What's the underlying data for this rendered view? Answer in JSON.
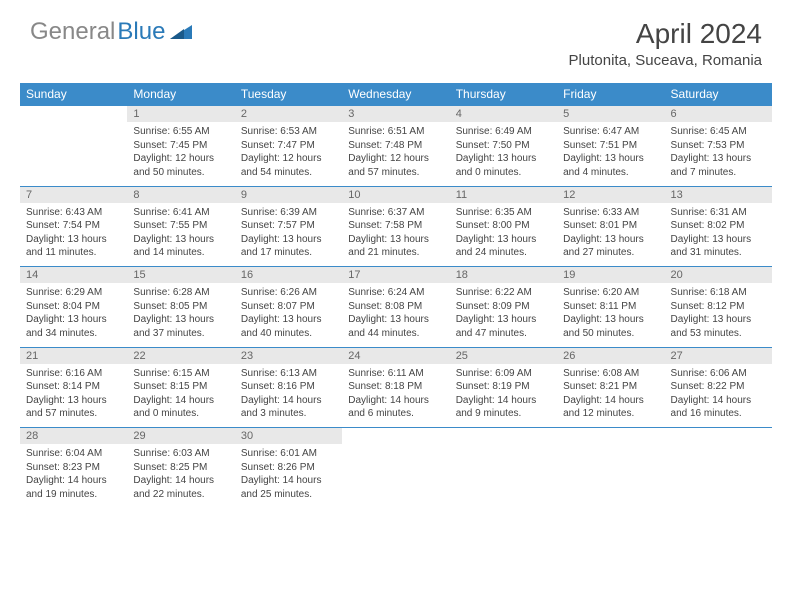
{
  "brand": {
    "part1": "General",
    "part2": "Blue"
  },
  "title": "April 2024",
  "location": "Plutonita, Suceava, Romania",
  "colors": {
    "header_bg": "#3b8bc9",
    "header_text": "#ffffff",
    "daynum_bg": "#e8e8e8",
    "daynum_text": "#666666",
    "body_text": "#444444",
    "logo_gray": "#888888",
    "logo_blue": "#2a7ab8",
    "rule": "#3b8bc9",
    "page_bg": "#ffffff"
  },
  "fonts": {
    "title_pt": 28,
    "location_pt": 15,
    "th_pt": 12,
    "daynum_pt": 11,
    "cell_pt": 10
  },
  "weekdays": [
    "Sunday",
    "Monday",
    "Tuesday",
    "Wednesday",
    "Thursday",
    "Friday",
    "Saturday"
  ],
  "weeks": [
    {
      "nums": [
        "",
        "1",
        "2",
        "3",
        "4",
        "5",
        "6"
      ],
      "cells": [
        null,
        {
          "sunrise": "Sunrise: 6:55 AM",
          "sunset": "Sunset: 7:45 PM",
          "day1": "Daylight: 12 hours",
          "day2": "and 50 minutes."
        },
        {
          "sunrise": "Sunrise: 6:53 AM",
          "sunset": "Sunset: 7:47 PM",
          "day1": "Daylight: 12 hours",
          "day2": "and 54 minutes."
        },
        {
          "sunrise": "Sunrise: 6:51 AM",
          "sunset": "Sunset: 7:48 PM",
          "day1": "Daylight: 12 hours",
          "day2": "and 57 minutes."
        },
        {
          "sunrise": "Sunrise: 6:49 AM",
          "sunset": "Sunset: 7:50 PM",
          "day1": "Daylight: 13 hours",
          "day2": "and 0 minutes."
        },
        {
          "sunrise": "Sunrise: 6:47 AM",
          "sunset": "Sunset: 7:51 PM",
          "day1": "Daylight: 13 hours",
          "day2": "and 4 minutes."
        },
        {
          "sunrise": "Sunrise: 6:45 AM",
          "sunset": "Sunset: 7:53 PM",
          "day1": "Daylight: 13 hours",
          "day2": "and 7 minutes."
        }
      ]
    },
    {
      "nums": [
        "7",
        "8",
        "9",
        "10",
        "11",
        "12",
        "13"
      ],
      "cells": [
        {
          "sunrise": "Sunrise: 6:43 AM",
          "sunset": "Sunset: 7:54 PM",
          "day1": "Daylight: 13 hours",
          "day2": "and 11 minutes."
        },
        {
          "sunrise": "Sunrise: 6:41 AM",
          "sunset": "Sunset: 7:55 PM",
          "day1": "Daylight: 13 hours",
          "day2": "and 14 minutes."
        },
        {
          "sunrise": "Sunrise: 6:39 AM",
          "sunset": "Sunset: 7:57 PM",
          "day1": "Daylight: 13 hours",
          "day2": "and 17 minutes."
        },
        {
          "sunrise": "Sunrise: 6:37 AM",
          "sunset": "Sunset: 7:58 PM",
          "day1": "Daylight: 13 hours",
          "day2": "and 21 minutes."
        },
        {
          "sunrise": "Sunrise: 6:35 AM",
          "sunset": "Sunset: 8:00 PM",
          "day1": "Daylight: 13 hours",
          "day2": "and 24 minutes."
        },
        {
          "sunrise": "Sunrise: 6:33 AM",
          "sunset": "Sunset: 8:01 PM",
          "day1": "Daylight: 13 hours",
          "day2": "and 27 minutes."
        },
        {
          "sunrise": "Sunrise: 6:31 AM",
          "sunset": "Sunset: 8:02 PM",
          "day1": "Daylight: 13 hours",
          "day2": "and 31 minutes."
        }
      ]
    },
    {
      "nums": [
        "14",
        "15",
        "16",
        "17",
        "18",
        "19",
        "20"
      ],
      "cells": [
        {
          "sunrise": "Sunrise: 6:29 AM",
          "sunset": "Sunset: 8:04 PM",
          "day1": "Daylight: 13 hours",
          "day2": "and 34 minutes."
        },
        {
          "sunrise": "Sunrise: 6:28 AM",
          "sunset": "Sunset: 8:05 PM",
          "day1": "Daylight: 13 hours",
          "day2": "and 37 minutes."
        },
        {
          "sunrise": "Sunrise: 6:26 AM",
          "sunset": "Sunset: 8:07 PM",
          "day1": "Daylight: 13 hours",
          "day2": "and 40 minutes."
        },
        {
          "sunrise": "Sunrise: 6:24 AM",
          "sunset": "Sunset: 8:08 PM",
          "day1": "Daylight: 13 hours",
          "day2": "and 44 minutes."
        },
        {
          "sunrise": "Sunrise: 6:22 AM",
          "sunset": "Sunset: 8:09 PM",
          "day1": "Daylight: 13 hours",
          "day2": "and 47 minutes."
        },
        {
          "sunrise": "Sunrise: 6:20 AM",
          "sunset": "Sunset: 8:11 PM",
          "day1": "Daylight: 13 hours",
          "day2": "and 50 minutes."
        },
        {
          "sunrise": "Sunrise: 6:18 AM",
          "sunset": "Sunset: 8:12 PM",
          "day1": "Daylight: 13 hours",
          "day2": "and 53 minutes."
        }
      ]
    },
    {
      "nums": [
        "21",
        "22",
        "23",
        "24",
        "25",
        "26",
        "27"
      ],
      "cells": [
        {
          "sunrise": "Sunrise: 6:16 AM",
          "sunset": "Sunset: 8:14 PM",
          "day1": "Daylight: 13 hours",
          "day2": "and 57 minutes."
        },
        {
          "sunrise": "Sunrise: 6:15 AM",
          "sunset": "Sunset: 8:15 PM",
          "day1": "Daylight: 14 hours",
          "day2": "and 0 minutes."
        },
        {
          "sunrise": "Sunrise: 6:13 AM",
          "sunset": "Sunset: 8:16 PM",
          "day1": "Daylight: 14 hours",
          "day2": "and 3 minutes."
        },
        {
          "sunrise": "Sunrise: 6:11 AM",
          "sunset": "Sunset: 8:18 PM",
          "day1": "Daylight: 14 hours",
          "day2": "and 6 minutes."
        },
        {
          "sunrise": "Sunrise: 6:09 AM",
          "sunset": "Sunset: 8:19 PM",
          "day1": "Daylight: 14 hours",
          "day2": "and 9 minutes."
        },
        {
          "sunrise": "Sunrise: 6:08 AM",
          "sunset": "Sunset: 8:21 PM",
          "day1": "Daylight: 14 hours",
          "day2": "and 12 minutes."
        },
        {
          "sunrise": "Sunrise: 6:06 AM",
          "sunset": "Sunset: 8:22 PM",
          "day1": "Daylight: 14 hours",
          "day2": "and 16 minutes."
        }
      ]
    },
    {
      "nums": [
        "28",
        "29",
        "30",
        "",
        "",
        "",
        ""
      ],
      "cells": [
        {
          "sunrise": "Sunrise: 6:04 AM",
          "sunset": "Sunset: 8:23 PM",
          "day1": "Daylight: 14 hours",
          "day2": "and 19 minutes."
        },
        {
          "sunrise": "Sunrise: 6:03 AM",
          "sunset": "Sunset: 8:25 PM",
          "day1": "Daylight: 14 hours",
          "day2": "and 22 minutes."
        },
        {
          "sunrise": "Sunrise: 6:01 AM",
          "sunset": "Sunset: 8:26 PM",
          "day1": "Daylight: 14 hours",
          "day2": "and 25 minutes."
        },
        null,
        null,
        null,
        null
      ]
    }
  ]
}
